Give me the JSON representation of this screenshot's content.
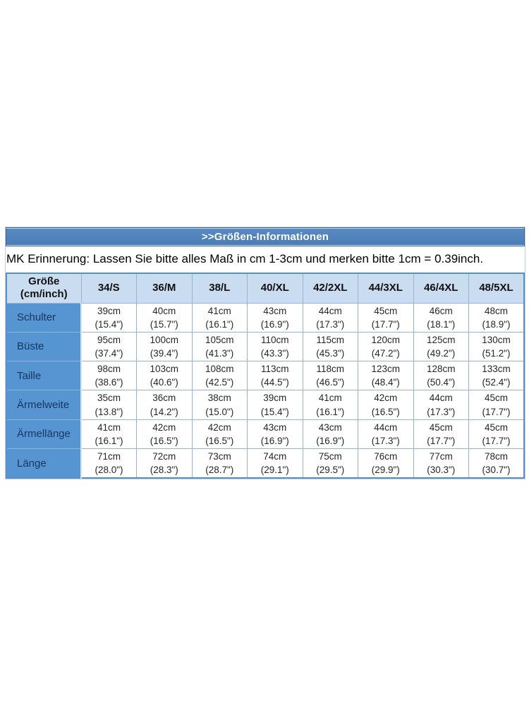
{
  "title": ">>Größen-Informationen",
  "note": "MK Erinnerung: Lassen Sie bitte alles Maß in cm 1-3cm und merken bitte 1cm = 0.39inch.",
  "table": {
    "corner_line1": "Größe",
    "corner_line2": "(cm/inch)",
    "size_headers": [
      "34/S",
      "36/M",
      "38/L",
      "40/XL",
      "42/2XL",
      "44/3XL",
      "46/4XL",
      "48/5XL"
    ],
    "rows": [
      {
        "label": "Schulter",
        "cm": [
          "39cm",
          "40cm",
          "41cm",
          "43cm",
          "44cm",
          "45cm",
          "46cm",
          "48cm"
        ],
        "inch": [
          "(15.4\")",
          "(15.7\")",
          "(16.1\")",
          "(16.9\")",
          "(17.3\")",
          "(17.7\")",
          "(18.1\")",
          "(18.9\")"
        ]
      },
      {
        "label": "Büste",
        "cm": [
          "95cm",
          "100cm",
          "105cm",
          "110cm",
          "115cm",
          "120cm",
          "125cm",
          "130cm"
        ],
        "inch": [
          "(37.4\")",
          "(39.4\")",
          "(41.3\")",
          "(43.3\")",
          "(45.3\")",
          "(47.2\")",
          "(49.2\")",
          "(51.2\")"
        ]
      },
      {
        "label": "Taille",
        "cm": [
          "98cm",
          "103cm",
          "108cm",
          "113cm",
          "118cm",
          "123cm",
          "128cm",
          "133cm"
        ],
        "inch": [
          "(38.6\")",
          "(40.6\")",
          "(42.5\")",
          "(44.5\")",
          "(46.5\")",
          "(48.4\")",
          "(50.4\")",
          "(52.4\")"
        ]
      },
      {
        "label": "Ärmelweite",
        "cm": [
          "35cm",
          "36cm",
          "38cm",
          "39cm",
          "41cm",
          "42cm",
          "44cm",
          "45cm"
        ],
        "inch": [
          "(13.8\")",
          "(14.2\")",
          "(15.0\")",
          "(15.4\")",
          "(16.1\")",
          "(16.5\")",
          "(17.3\")",
          "(17.7\")"
        ]
      },
      {
        "label": "Ärmellänge",
        "cm": [
          "41cm",
          "42cm",
          "42cm",
          "43cm",
          "43cm",
          "44cm",
          "45cm",
          "45cm"
        ],
        "inch": [
          "(16.1\")",
          "(16.5\")",
          "(16.5\")",
          "(16.9\")",
          "(16.9\")",
          "(17.3\")",
          "(17.7\")",
          "(17.7\")"
        ]
      },
      {
        "label": "Länge",
        "cm": [
          "71cm",
          "72cm",
          "73cm",
          "74cm",
          "75cm",
          "76cm",
          "77cm",
          "78cm"
        ],
        "inch": [
          "(28.0\")",
          "(28.3\")",
          "(28.7\")",
          "(29.1\")",
          "(29.5\")",
          "(29.9\")",
          "(30.3\")",
          "(30.7\")"
        ]
      }
    ]
  },
  "colors": {
    "title_bar_blue": "#4E81BD",
    "title_border": "#36689E",
    "header_row_bg": "#C9DCF0",
    "row_label_bg": "#5694D2",
    "row_label_text": "#17375E",
    "grid_line": "#95B3D7",
    "table_outer_border": "#5B8FC9",
    "title_text": "#FFFFFF",
    "body_text": "#262626"
  }
}
